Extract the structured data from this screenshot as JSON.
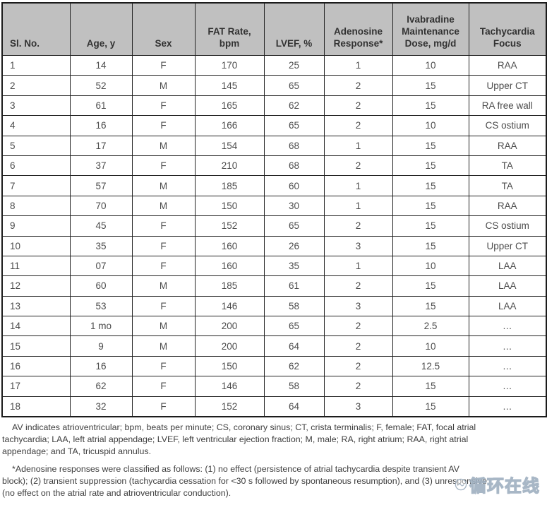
{
  "colors": {
    "header_bg": "#c0c0c0",
    "grid_line": "#222222",
    "header_text": "#323232",
    "cell_text": "#4c4c4c",
    "footnote_text": "#3e3e3e",
    "watermark_outline": "#9fb0c0"
  },
  "table": {
    "columns": [
      {
        "label": "Sl. No."
      },
      {
        "label": "Age, y"
      },
      {
        "label": "Sex"
      },
      {
        "label": "FAT Rate,\nbpm"
      },
      {
        "label": "LVEF, %"
      },
      {
        "label": "Adenosine\nResponse*"
      },
      {
        "label": "Ivabradine\nMaintenance\nDose, mg/d"
      },
      {
        "label": "Tachycardia\nFocus"
      }
    ],
    "rows": [
      [
        "1",
        "14",
        "F",
        "170",
        "25",
        "1",
        "10",
        "RAA"
      ],
      [
        "2",
        "52",
        "M",
        "145",
        "65",
        "2",
        "15",
        "Upper CT"
      ],
      [
        "3",
        "61",
        "F",
        "165",
        "62",
        "2",
        "15",
        "RA free wall"
      ],
      [
        "4",
        "16",
        "F",
        "166",
        "65",
        "2",
        "10",
        "CS ostium"
      ],
      [
        "5",
        "17",
        "M",
        "154",
        "68",
        "1",
        "15",
        "RAA"
      ],
      [
        "6",
        "37",
        "F",
        "210",
        "68",
        "2",
        "15",
        "TA"
      ],
      [
        "7",
        "57",
        "M",
        "185",
        "60",
        "1",
        "15",
        "TA"
      ],
      [
        "8",
        "70",
        "M",
        "150",
        "30",
        "1",
        "15",
        "RAA"
      ],
      [
        "9",
        "45",
        "F",
        "152",
        "65",
        "2",
        "15",
        "CS ostium"
      ],
      [
        "10",
        "35",
        "F",
        "160",
        "26",
        "3",
        "15",
        "Upper CT"
      ],
      [
        "11",
        "07",
        "F",
        "160",
        "35",
        "1",
        "10",
        "LAA"
      ],
      [
        "12",
        "60",
        "M",
        "185",
        "61",
        "2",
        "15",
        "LAA"
      ],
      [
        "13",
        "53",
        "F",
        "146",
        "58",
        "3",
        "15",
        "LAA"
      ],
      [
        "14",
        "1 mo",
        "M",
        "200",
        "65",
        "2",
        "2.5",
        "…"
      ],
      [
        "15",
        "9",
        "M",
        "200",
        "64",
        "2",
        "10",
        "…"
      ],
      [
        "16",
        "16",
        "F",
        "150",
        "62",
        "2",
        "12.5",
        "…"
      ],
      [
        "17",
        "62",
        "F",
        "146",
        "58",
        "2",
        "15",
        "…"
      ],
      [
        "18",
        "32",
        "F",
        "152",
        "64",
        "3",
        "15",
        "…"
      ]
    ]
  },
  "footnotes": {
    "abbreviations": "AV indicates atrioventricular; bpm, beats per minute; CS, coronary sinus; CT, crista terminalis; F, female; FAT, focal atrial\ntachycardia; LAA, left atrial appendage; LVEF, left ventricular ejection fraction; M, male; RA, right atrium; RAA, right atrial\nappendage; and TA, tricuspid annulus.",
    "adenosine": "*Adenosine responses were classified as follows: (1) no effect (persistence of atrial tachycardia despite transient AV\nblock); (2) transient suppression (tachycardia cessation for <30 s followed by spontaneous resumption), and (3) unresponsive\n(no effect on the atrial rate and atrioventricular conduction)."
  },
  "watermark": {
    "text": "循环在线"
  }
}
